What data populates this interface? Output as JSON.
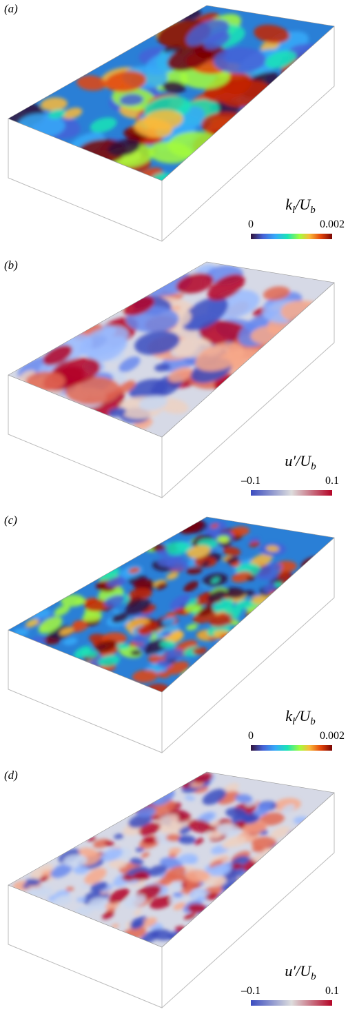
{
  "panels": [
    {
      "label": "(a)",
      "colorbar": {
        "symbol": "k",
        "sub": "l",
        "over": "/U",
        "over_sub": "b",
        "min": "0",
        "max": "0.002",
        "map": "turbo"
      }
    },
    {
      "label": "(b)",
      "colorbar": {
        "symbol": "u′",
        "sub": "",
        "over": "/U",
        "over_sub": "b",
        "min": "–0.1",
        "max": "0.1",
        "map": "coolwarm"
      }
    },
    {
      "label": "(c)",
      "colorbar": {
        "symbol": "k",
        "sub": "l",
        "over": "/U",
        "over_sub": "b",
        "min": "0",
        "max": "0.002",
        "map": "turbo"
      }
    },
    {
      "label": "(d)",
      "colorbar": {
        "symbol": "u′",
        "sub": "",
        "over": "/U",
        "over_sub": "b",
        "min": "–0.1",
        "max": "0.1",
        "map": "coolwarm"
      }
    }
  ]
}
